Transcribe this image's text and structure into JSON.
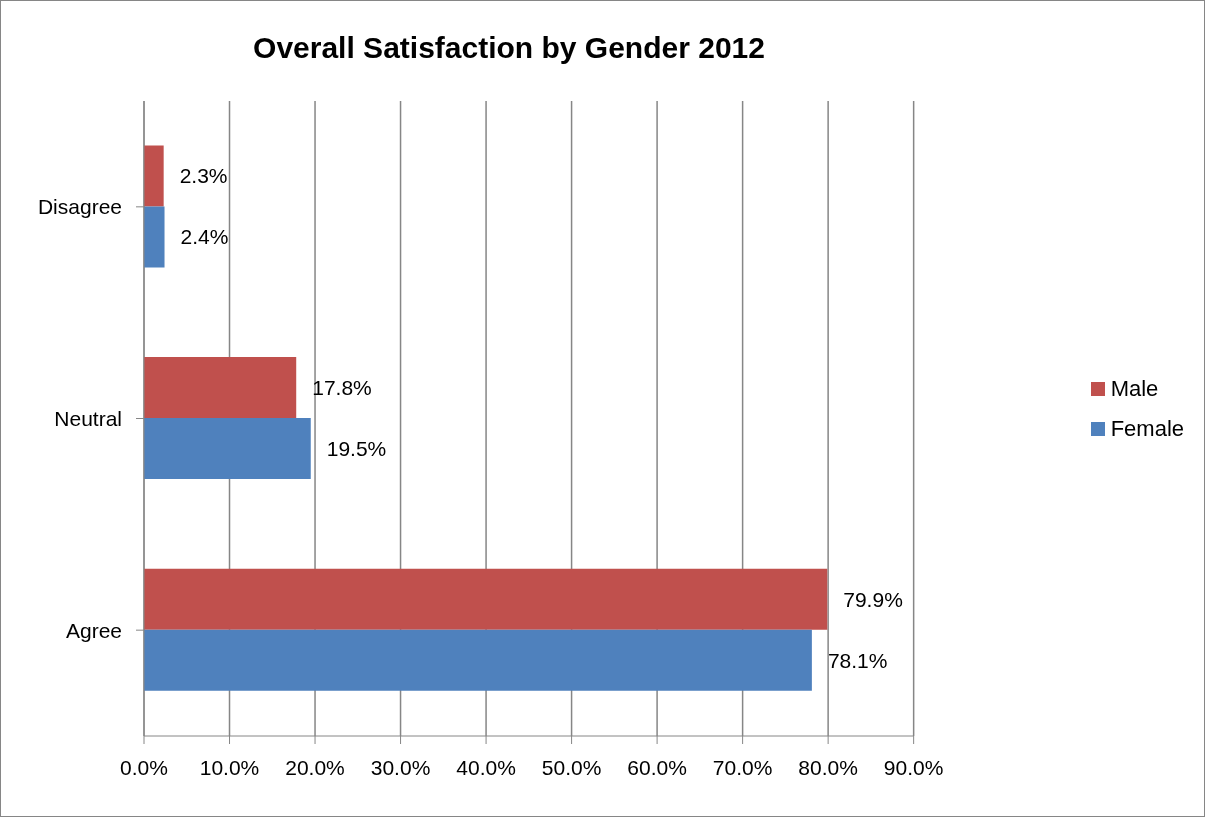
{
  "chart_data": {
    "type": "bar",
    "orientation": "horizontal",
    "title": "Overall Satisfaction by Gender 2012",
    "categories": [
      "Disagree",
      "Neutral",
      "Agree"
    ],
    "series": [
      {
        "name": "Male",
        "color": "#c0504d",
        "values": [
          2.3,
          17.8,
          79.9
        ],
        "value_labels": [
          "2.3%",
          "17.8%",
          "79.9%"
        ]
      },
      {
        "name": "Female",
        "color": "#4f81bd",
        "values": [
          2.4,
          19.5,
          78.1
        ],
        "value_labels": [
          "2.4%",
          "19.5%",
          "78.1%"
        ]
      }
    ],
    "xlim": [
      0,
      90
    ],
    "xticks": [
      {
        "value": 0,
        "label": "0.0%"
      },
      {
        "value": 10,
        "label": "10.0%"
      },
      {
        "value": 20,
        "label": "20.0%"
      },
      {
        "value": 30,
        "label": "30.0%"
      },
      {
        "value": 40,
        "label": "40.0%"
      },
      {
        "value": 50,
        "label": "50.0%"
      },
      {
        "value": 60,
        "label": "60.0%"
      },
      {
        "value": 70,
        "label": "70.0%"
      },
      {
        "value": 80,
        "label": "80.0%"
      },
      {
        "value": 90,
        "label": "90.0%"
      }
    ],
    "grid": "x",
    "legend": "right"
  }
}
